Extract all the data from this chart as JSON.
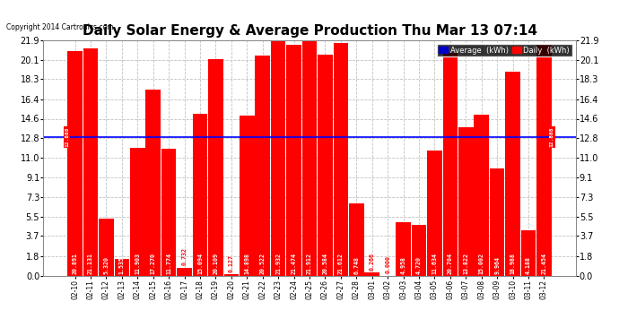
{
  "title": "Daily Solar Energy & Average Production Thu Mar 13 07:14",
  "copyright": "Copyright 2014 Cartronics.com",
  "categories": [
    "02-10",
    "02-11",
    "02-12",
    "02-13",
    "02-14",
    "02-15",
    "02-16",
    "02-17",
    "02-18",
    "02-19",
    "02-20",
    "02-21",
    "02-22",
    "02-23",
    "02-24",
    "02-25",
    "02-26",
    "02-27",
    "02-28",
    "03-01",
    "03-02",
    "03-03",
    "03-04",
    "03-05",
    "03-06",
    "03-07",
    "03-08",
    "03-09",
    "03-10",
    "03-11",
    "03-12"
  ],
  "values": [
    20.891,
    21.131,
    5.32,
    1.535,
    11.903,
    17.27,
    11.774,
    0.732,
    15.094,
    20.109,
    0.127,
    14.898,
    20.522,
    21.932,
    21.474,
    21.912,
    20.584,
    21.612,
    6.748,
    0.266,
    0.0,
    4.958,
    4.72,
    11.634,
    20.704,
    13.822,
    15.002,
    9.964,
    18.988,
    4.188,
    21.454
  ],
  "average_line": 12.888,
  "bar_color": "#ff0000",
  "avg_line_color": "#0000ff",
  "background_color": "#ffffff",
  "plot_bg_color": "#ffffff",
  "grid_color": "#bbbbbb",
  "y_ticks": [
    0.0,
    1.8,
    3.7,
    5.5,
    7.3,
    9.1,
    11.0,
    12.8,
    14.6,
    16.4,
    18.3,
    20.1,
    21.9
  ],
  "ylim": [
    0.0,
    21.9
  ],
  "avg_label": "12.888",
  "title_fontsize": 11,
  "legend_avg_color": "#0000cc",
  "legend_daily_color": "#ff0000"
}
